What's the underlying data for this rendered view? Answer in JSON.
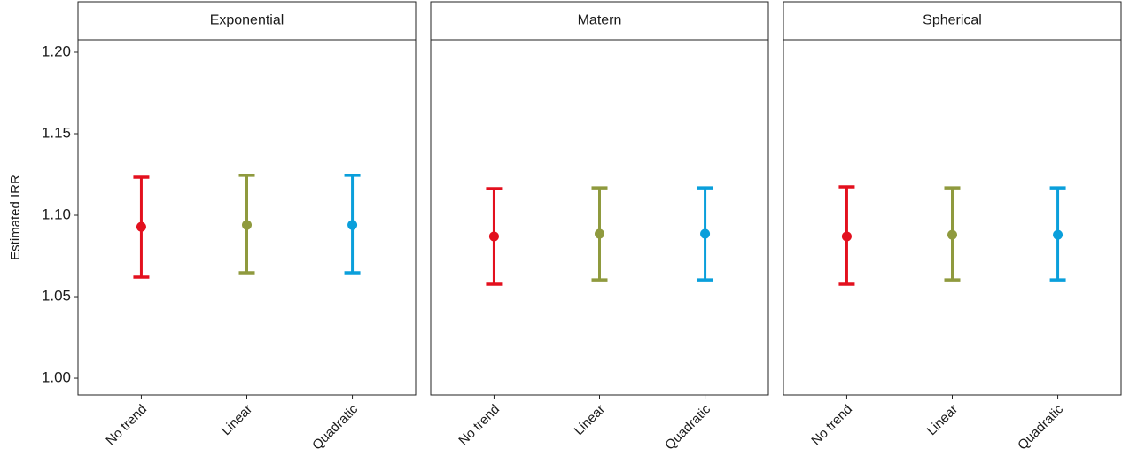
{
  "chart_data": [
    {
      "type": "errorbar",
      "title": "Exponential",
      "ylabel": "Estimated IRR",
      "categories": [
        "No trend",
        "Linear",
        "Quadratic"
      ],
      "values": [
        1.0929,
        1.094,
        1.094
      ],
      "lower": [
        1.062,
        1.0647,
        1.0647
      ],
      "upper": [
        1.1234,
        1.1245,
        1.1245
      ],
      "colors": [
        "#e3101e",
        "#8f9a3e",
        "#0a9fdb"
      ],
      "ylim": [
        0.9897,
        1.2076
      ],
      "yticks": [
        {
          "value": 1.0,
          "label": "1.00"
        },
        1.05,
        {
          "value": 1.1,
          "label": "1.10"
        },
        1.15,
        {
          "value": 1.2,
          "label": "1.20"
        }
      ]
    },
    {
      "type": "errorbar",
      "title": "Matern",
      "categories": [
        "No trend",
        "Linear",
        "Quadratic"
      ],
      "values": [
        1.087,
        1.0886,
        1.0886
      ],
      "lower": [
        1.0576,
        1.0603,
        1.0603
      ],
      "upper": [
        1.1163,
        1.1168,
        1.1168
      ],
      "colors": [
        "#e3101e",
        "#8f9a3e",
        "#0a9fdb"
      ],
      "ylim": [
        0.9897,
        1.2076
      ]
    },
    {
      "type": "errorbar",
      "title": "Spherical",
      "categories": [
        "No trend",
        "Linear",
        "Quadratic"
      ],
      "values": [
        1.087,
        1.088,
        1.088
      ],
      "lower": [
        1.0576,
        1.0603,
        1.0603
      ],
      "upper": [
        1.1174,
        1.1168,
        1.1168
      ],
      "colors": [
        "#e3101e",
        "#8f9a3e",
        "#0a9fdb"
      ],
      "ylim": [
        0.9897,
        1.2076
      ]
    }
  ]
}
